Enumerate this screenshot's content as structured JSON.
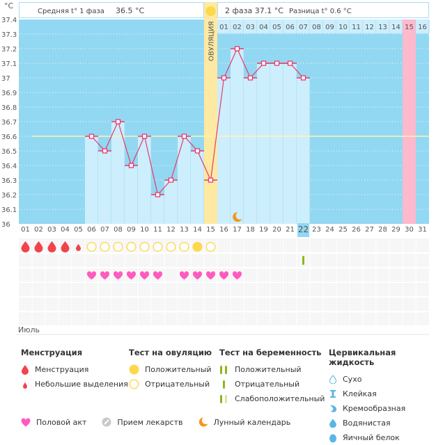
{
  "chart_data": {
    "type": "bar",
    "title": "",
    "ylabel": "°C",
    "xlabel": "Июль",
    "ylim": [
      36.0,
      37.4
    ],
    "ytick_step": 0.1,
    "yticks": [
      "37.4",
      "37.3",
      "37.2",
      "37.1",
      "37",
      "36.9",
      "36.8",
      "36.7",
      "36.6",
      "36.5",
      "36.4",
      "36.3",
      "36.2",
      "36.1",
      "36"
    ],
    "days": [
      "01",
      "02",
      "03",
      "04",
      "05",
      "06",
      "07",
      "08",
      "09",
      "10",
      "11",
      "12",
      "13",
      "14",
      "15",
      "16",
      "17",
      "18",
      "19",
      "20",
      "21",
      "22",
      "23",
      "24",
      "25",
      "26",
      "27",
      "28",
      "29",
      "30",
      "31"
    ],
    "weekend_days": [
      "04",
      "05",
      "11",
      "12",
      "18",
      "19",
      "25",
      "26"
    ],
    "today": "22",
    "temperature_series": {
      "name": "Базальная температура",
      "x": [
        "06",
        "07",
        "08",
        "09",
        "10",
        "11",
        "12",
        "13",
        "14",
        "15",
        "16",
        "17",
        "18",
        "19",
        "20",
        "21",
        "22"
      ],
      "values": [
        36.6,
        36.5,
        36.7,
        36.4,
        36.6,
        36.2,
        36.3,
        36.6,
        36.5,
        36.3,
        37.0,
        37.2,
        37.0,
        37.1,
        37.1,
        37.1,
        37.0
      ]
    },
    "coverline": 36.6,
    "ovulation_day": "15",
    "ovulation_label": "ОВУЛЯЦИЯ",
    "expected_period_day": "30",
    "phase2_days": [
      "01",
      "02",
      "03",
      "04",
      "05",
      "06",
      "07",
      "08",
      "09",
      "10",
      "11",
      "12",
      "13",
      "14",
      "15",
      "16"
    ],
    "phase2_highlight": "15",
    "moon_day": "17",
    "menstruation": {
      "heavy": [
        "01",
        "02",
        "03",
        "04"
      ],
      "light": [
        "05"
      ]
    },
    "ovulation_tests": {
      "negative": [
        "06",
        "07",
        "08",
        "09",
        "10",
        "11",
        "12",
        "13",
        "15"
      ],
      "positive": [
        "14"
      ]
    },
    "pregnancy_tests": {
      "negative": [
        "22"
      ]
    },
    "intercourse": [
      "06",
      "07",
      "08",
      "09",
      "10",
      "11",
      "13",
      "14",
      "15",
      "16",
      "17"
    ]
  },
  "header": {
    "phase1_label": "Средняя t° 1 фаза",
    "phase1_value": "36.5 °C",
    "phase2_label": "2 фаза",
    "phase2_value": "37.1 °C",
    "diff_label": "Разница t°",
    "diff_value": "0.6 °C"
  },
  "month_label": "Июль",
  "colors": {
    "chart_bg": "#93d8f2",
    "bar": "#cdeefc",
    "line": "#e8386c",
    "ovulation": "#fde9a2",
    "period_expected": "#ffb9cc",
    "today": "#93d8f2",
    "weekend": "#e8386c",
    "coverline": "#fff3b0"
  },
  "legend": {
    "menstruation": {
      "title": "Менструация",
      "items": [
        "Менструация",
        "Небольшие выделения"
      ]
    },
    "ovulation_test": {
      "title": "Тест на овуляцию",
      "items": [
        "Положительный",
        "Отрицательный"
      ]
    },
    "pregnancy_test": {
      "title": "Тест на беременность",
      "items": [
        "Положительный",
        "Отрицательный",
        "Слабоположительный"
      ]
    },
    "cervical_fluid": {
      "title": "Цервикальная жидкость",
      "items": [
        "Сухо",
        "Клейкая",
        "Кремообразная",
        "Водянистая",
        "Яичный белок"
      ]
    },
    "bottom": [
      "Половой акт",
      "Прием лекарств",
      "Лунный календарь"
    ]
  }
}
